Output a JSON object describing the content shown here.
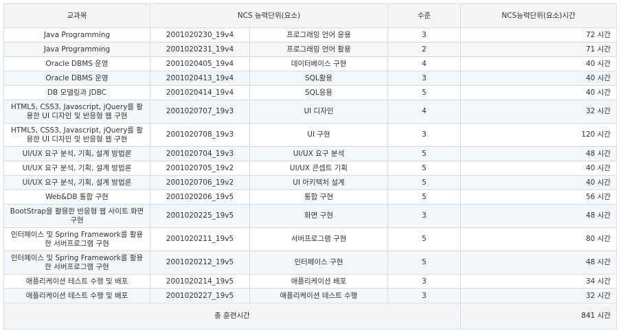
{
  "headers": {
    "subject": "교과목",
    "ncs_unit": "NCS 능력단위(요소)",
    "level": "수준",
    "hours": "NCS능력단위(요소)시간"
  },
  "rows": [
    {
      "subject": "Java Programming",
      "code": "2001020230_19v4",
      "unit": "프로그래밍 언어 응용",
      "level": "3",
      "hours": "72 시간"
    },
    {
      "subject": "Java Programming",
      "code": "2001020231_19v4",
      "unit": "프로그래밍 언어 활용",
      "level": "2",
      "hours": "71 시간"
    },
    {
      "subject": "Oracle DBMS 운영",
      "code": "2001020405_19v4",
      "unit": "데이터베이스 구현",
      "level": "4",
      "hours": "40 시간"
    },
    {
      "subject": "Oracle DBMS 운영",
      "code": "2001020413_19v4",
      "unit": "SQL활용",
      "level": "3",
      "hours": "40 시간"
    },
    {
      "subject": "DB 모델링과 JDBC",
      "code": "2001020414_19v4",
      "unit": "SQL응용",
      "level": "5",
      "hours": "40 시간"
    },
    {
      "subject": "HTML5, CSS3, Javascript, jQuery를 활용한 UI 디자인 및 반응형 웹 구현",
      "code": "2001020707_19v3",
      "unit": "UI 디자인",
      "level": "4",
      "hours": "32 시간"
    },
    {
      "subject": "HTML5, CSS3, Javascript, jQuery를 활용한 UI 디자인 및 반응형 웹 구현",
      "code": "2001020708_19v3",
      "unit": "UI 구현",
      "level": "3",
      "hours": "120 시간"
    },
    {
      "subject": "UI/UX 요구 분석, 기획, 설계 방법론",
      "code": "2001020704_19v3",
      "unit": "UI/UX 요구 분석",
      "level": "5",
      "hours": "48 시간"
    },
    {
      "subject": "UI/UX 요구 분석, 기획, 설계 방법론",
      "code": "2001020705_19v2",
      "unit": "UI/UX 콘셉트 기획",
      "level": "5",
      "hours": "40 시간"
    },
    {
      "subject": "UI/UX 요구 분석, 기획, 설계 방법론",
      "code": "2001020706_19v2",
      "unit": "UI 아키텍처 설계",
      "level": "5",
      "hours": "40 시간"
    },
    {
      "subject": "Web&DB 통합 구현",
      "code": "2001020206_19v5",
      "unit": "통합 구현",
      "level": "5",
      "hours": "56 시간"
    },
    {
      "subject": "BootStrap을 활용한 반응형 웹 사이트 화면 구현",
      "code": "2001020225_19v5",
      "unit": "화면 구현",
      "level": "3",
      "hours": "48 시간"
    },
    {
      "subject": "인터페이스 및 Spring Framework를 활용한 서버프로그램 구현",
      "code": "2001020211_19v5",
      "unit": "서버프로그램 구현",
      "level": "5",
      "hours": "80 시간"
    },
    {
      "subject": "인터페이스 및 Spring Framework를 활용한 서버프로그램 구현",
      "code": "2001020212_19v5",
      "unit": "인터페이스 구현",
      "level": "5",
      "hours": "48 시간"
    },
    {
      "subject": "애플리케이션 테스트 수행 및 배포",
      "code": "2001020214_19v5",
      "unit": "애플리케이션 배포",
      "level": "3",
      "hours": "34 시간"
    },
    {
      "subject": "애플리케이션 테스트 수행 및 배포",
      "code": "2001020227_19v5",
      "unit": "애플리케이션 테스트 수행",
      "level": "3",
      "hours": "32 시간"
    }
  ],
  "footer": {
    "label": "총 훈련시간",
    "total": "841 시간"
  }
}
